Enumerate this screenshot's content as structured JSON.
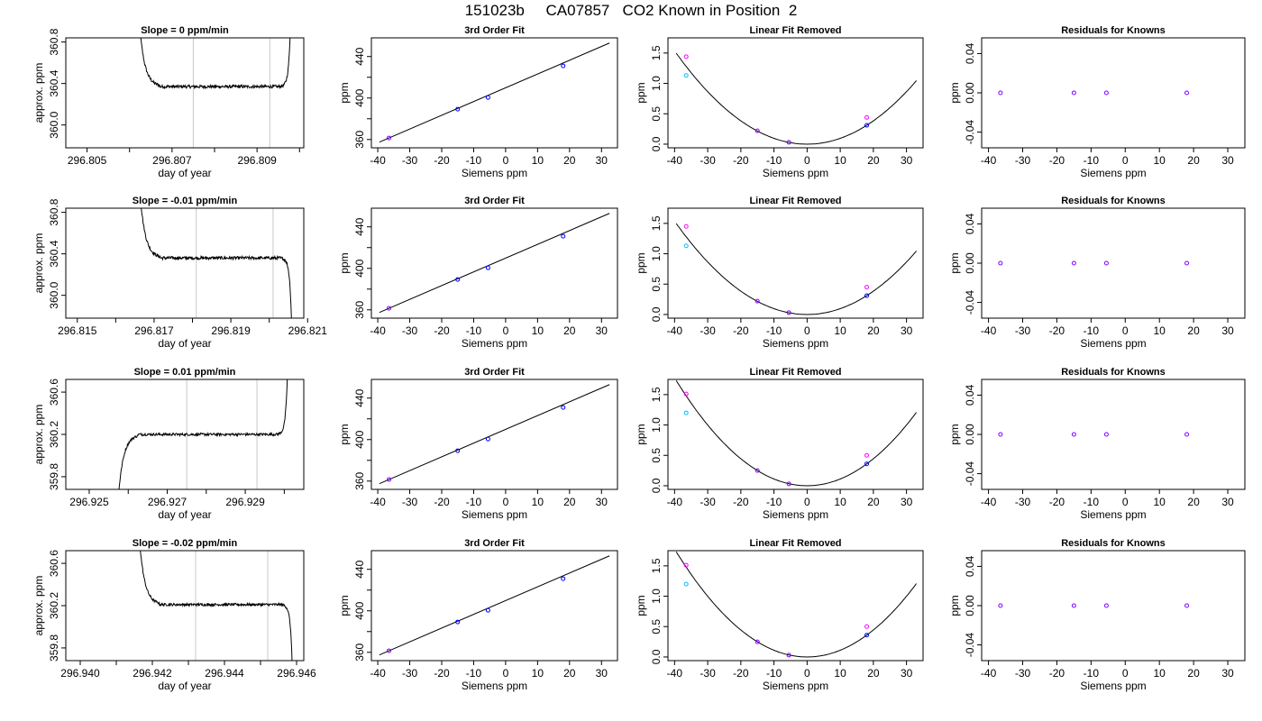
{
  "page_title": "151023b     CA07857   CO2 Known in Position  2",
  "colors": {
    "trace": "#000000",
    "gray_line": "#c8c8c8",
    "fit_line": "#000000",
    "series_blue": "#0000ff",
    "series_magenta": "#ff00ff",
    "series_cyan": "#00bfff",
    "series_purple": "#8000ff"
  },
  "chart_data": [
    {
      "type": "line",
      "row": 0,
      "col": 0,
      "title": "Slope =  0  ppm/min",
      "xlabel": "day of year",
      "ylabel": "approx. ppm",
      "xlim": [
        296.8045,
        296.8101
      ],
      "ylim": [
        359.78,
        360.84
      ],
      "xticks": [
        296.805,
        296.806,
        296.807,
        296.808,
        296.809,
        296.81
      ],
      "xticklabels": [
        "296.805",
        "",
        "296.807",
        "",
        "296.809",
        ""
      ],
      "yticks": [
        360.0,
        360.4,
        360.8
      ],
      "yticklabels": [
        "360.0",
        "360.4",
        "360.8"
      ],
      "vlines": [
        296.8075,
        296.8093
      ],
      "trace": {
        "start": 296.8062,
        "end": 296.8098,
        "level": 360.37,
        "noise": 0.015,
        "pre": "high",
        "post": "high"
      }
    },
    {
      "type": "line",
      "row": 0,
      "col": 1,
      "title": "3rd Order Fit",
      "xlabel": "Siemens ppm",
      "ylabel": "ppm",
      "xlim": [
        -42,
        35
      ],
      "ylim": [
        352,
        458
      ],
      "xticks": [
        -40,
        -30,
        -20,
        -10,
        0,
        10,
        20,
        30
      ],
      "xticklabels": [
        "-40",
        "-30",
        "-20",
        "-10",
        "0",
        "10",
        "20",
        "30"
      ],
      "yticks": [
        360,
        380,
        400,
        420,
        440
      ],
      "yticklabels": [
        "360",
        "",
        "400",
        "",
        "440"
      ],
      "fit": {
        "kind": "linear",
        "x": [
          -39.5,
          32.5
        ],
        "y": [
          357.5,
          453.0
        ]
      },
      "points": [
        {
          "x": -36.5,
          "y": 361.5,
          "color": "series_purple"
        },
        {
          "x": -15.0,
          "y": 389.3,
          "color": "series_blue"
        },
        {
          "x": -5.5,
          "y": 400.5,
          "color": "series_blue"
        },
        {
          "x": 18.0,
          "y": 431.0,
          "color": "series_blue"
        }
      ]
    },
    {
      "type": "line",
      "row": 0,
      "col": 2,
      "title": "Linear Fit Removed",
      "xlabel": "Siemens ppm",
      "ylabel": "ppm",
      "xlim": [
        -42,
        35
      ],
      "ylim": [
        -0.06,
        1.75
      ],
      "xticks": [
        -40,
        -30,
        -20,
        -10,
        0,
        10,
        20,
        30
      ],
      "xticklabels": [
        "-40",
        "-30",
        "-20",
        "-10",
        "0",
        "10",
        "20",
        "30"
      ],
      "yticks": [
        0.0,
        0.5,
        1.0,
        1.5
      ],
      "yticklabels": [
        "0.0",
        "0.5",
        "1.0",
        "1.5"
      ],
      "fit": {
        "kind": "quadratic",
        "a": 0.00096,
        "xmin": -39.5,
        "xmax": 33
      },
      "points": [
        {
          "x": -36.5,
          "y": 1.44,
          "color": "series_magenta"
        },
        {
          "x": -36.5,
          "y": 1.13,
          "color": "series_cyan"
        },
        {
          "x": -15.0,
          "y": 0.22,
          "color": "series_purple"
        },
        {
          "x": -5.5,
          "y": 0.03,
          "color": "series_purple"
        },
        {
          "x": 18.0,
          "y": 0.44,
          "color": "series_magenta"
        },
        {
          "x": 18.0,
          "y": 0.31,
          "color": "series_blue"
        }
      ]
    },
    {
      "type": "scatter",
      "row": 0,
      "col": 3,
      "title": "Residuals for Knowns",
      "xlabel": "Siemens ppm",
      "ylabel": "ppm",
      "xlim": [
        -42,
        35
      ],
      "ylim": [
        -0.056,
        0.056
      ],
      "xticks": [
        -40,
        -30,
        -20,
        -10,
        0,
        10,
        20,
        30
      ],
      "xticklabels": [
        "-40",
        "-30",
        "-20",
        "-10",
        "0",
        "10",
        "20",
        "30"
      ],
      "yticks": [
        -0.04,
        0.0,
        0.04
      ],
      "yticklabels": [
        "-0.04",
        "0.00",
        "0.04"
      ],
      "points": [
        {
          "x": -36.5,
          "y": 0.0,
          "color": "series_purple"
        },
        {
          "x": -15.0,
          "y": 0.0,
          "color": "series_purple"
        },
        {
          "x": -5.5,
          "y": 0.0,
          "color": "series_purple"
        },
        {
          "x": 18.0,
          "y": 0.0,
          "color": "series_purple"
        }
      ]
    },
    {
      "type": "line",
      "row": 1,
      "col": 0,
      "title": "Slope =  -0.01  ppm/min",
      "xlabel": "day of year",
      "ylabel": "approx. ppm",
      "xlim": [
        296.8147,
        296.8209
      ],
      "ylim": [
        359.78,
        360.84
      ],
      "xticks": [
        296.815,
        296.816,
        296.817,
        296.818,
        296.819,
        296.82,
        296.821
      ],
      "xticklabels": [
        "296.815",
        "",
        "296.817",
        "",
        "296.819",
        "",
        "296.821"
      ],
      "yticks": [
        360.0,
        360.4,
        360.8
      ],
      "yticklabels": [
        "360.0",
        "360.4",
        "360.8"
      ],
      "vlines": [
        296.8181,
        296.8201
      ],
      "trace": {
        "start": 296.8166,
        "end": 296.8206,
        "level": 360.36,
        "noise": 0.015,
        "pre": "high",
        "post": "low"
      }
    },
    {
      "type": "line",
      "row": 1,
      "col": 1,
      "title": "3rd Order Fit",
      "xlabel": "Siemens ppm",
      "ylabel": "ppm",
      "xlim": [
        -42,
        35
      ],
      "ylim": [
        352,
        458
      ],
      "xticks": [
        -40,
        -30,
        -20,
        -10,
        0,
        10,
        20,
        30
      ],
      "xticklabels": [
        "-40",
        "-30",
        "-20",
        "-10",
        "0",
        "10",
        "20",
        "30"
      ],
      "yticks": [
        360,
        380,
        400,
        420,
        440
      ],
      "yticklabels": [
        "360",
        "",
        "400",
        "",
        "440"
      ],
      "fit": {
        "kind": "linear",
        "x": [
          -39.5,
          32.5
        ],
        "y": [
          357.5,
          453.0
        ]
      },
      "points": [
        {
          "x": -36.5,
          "y": 361.5,
          "color": "series_purple"
        },
        {
          "x": -15.0,
          "y": 389.3,
          "color": "series_blue"
        },
        {
          "x": -5.5,
          "y": 400.5,
          "color": "series_blue"
        },
        {
          "x": 18.0,
          "y": 431.0,
          "color": "series_blue"
        }
      ]
    },
    {
      "type": "line",
      "row": 1,
      "col": 2,
      "title": "Linear Fit Removed",
      "xlabel": "Siemens ppm",
      "ylabel": "ppm",
      "xlim": [
        -42,
        35
      ],
      "ylim": [
        -0.06,
        1.75
      ],
      "xticks": [
        -40,
        -30,
        -20,
        -10,
        0,
        10,
        20,
        30
      ],
      "xticklabels": [
        "-40",
        "-30",
        "-20",
        "-10",
        "0",
        "10",
        "20",
        "30"
      ],
      "yticks": [
        0.0,
        0.5,
        1.0,
        1.5
      ],
      "yticklabels": [
        "0.0",
        "0.5",
        "1.0",
        "1.5"
      ],
      "fit": {
        "kind": "quadratic",
        "a": 0.00096,
        "xmin": -39.5,
        "xmax": 33
      },
      "points": [
        {
          "x": -36.5,
          "y": 1.45,
          "color": "series_magenta"
        },
        {
          "x": -36.5,
          "y": 1.13,
          "color": "series_cyan"
        },
        {
          "x": -15.0,
          "y": 0.22,
          "color": "series_purple"
        },
        {
          "x": -5.5,
          "y": 0.03,
          "color": "series_purple"
        },
        {
          "x": 18.0,
          "y": 0.45,
          "color": "series_magenta"
        },
        {
          "x": 18.0,
          "y": 0.31,
          "color": "series_blue"
        }
      ]
    },
    {
      "type": "scatter",
      "row": 1,
      "col": 3,
      "title": "Residuals for Knowns",
      "xlabel": "Siemens ppm",
      "ylabel": "ppm",
      "xlim": [
        -42,
        35
      ],
      "ylim": [
        -0.056,
        0.056
      ],
      "xticks": [
        -40,
        -30,
        -20,
        -10,
        0,
        10,
        20,
        30
      ],
      "xticklabels": [
        "-40",
        "-30",
        "-20",
        "-10",
        "0",
        "10",
        "20",
        "30"
      ],
      "yticks": [
        -0.04,
        0.0,
        0.04
      ],
      "yticklabels": [
        "-0.04",
        "0.00",
        "0.04"
      ],
      "points": [
        {
          "x": -36.5,
          "y": 0.0,
          "color": "series_purple"
        },
        {
          "x": -15.0,
          "y": 0.0,
          "color": "series_purple"
        },
        {
          "x": -5.5,
          "y": 0.0,
          "color": "series_purple"
        },
        {
          "x": 18.0,
          "y": 0.0,
          "color": "series_purple"
        }
      ]
    },
    {
      "type": "line",
      "row": 2,
      "col": 0,
      "title": "Slope =  0.01  ppm/min",
      "xlabel": "day of year",
      "ylabel": "approx. ppm",
      "xlim": [
        296.9244,
        296.9305
      ],
      "ylim": [
        359.68,
        360.72
      ],
      "xticks": [
        296.925,
        296.926,
        296.927,
        296.928,
        296.929,
        296.93
      ],
      "xticklabels": [
        "296.925",
        "",
        "296.927",
        "",
        "296.929",
        ""
      ],
      "yticks": [
        359.8,
        360.2,
        360.6
      ],
      "yticklabels": [
        "359.8",
        "360.2",
        "360.6"
      ],
      "vlines": [
        296.9275,
        296.9293
      ],
      "trace": {
        "start": 296.9257,
        "end": 296.9301,
        "level": 360.2,
        "noise": 0.012,
        "pre": "low",
        "post": "high"
      }
    },
    {
      "type": "line",
      "row": 2,
      "col": 1,
      "title": "3rd Order Fit",
      "xlabel": "Siemens ppm",
      "ylabel": "ppm",
      "xlim": [
        -42,
        35
      ],
      "ylim": [
        352,
        458
      ],
      "xticks": [
        -40,
        -30,
        -20,
        -10,
        0,
        10,
        20,
        30
      ],
      "xticklabels": [
        "-40",
        "-30",
        "-20",
        "-10",
        "0",
        "10",
        "20",
        "30"
      ],
      "yticks": [
        360,
        380,
        400,
        420,
        440
      ],
      "yticklabels": [
        "360",
        "",
        "400",
        "",
        "440"
      ],
      "fit": {
        "kind": "linear",
        "x": [
          -39.5,
          32.5
        ],
        "y": [
          357.5,
          453.0
        ]
      },
      "points": [
        {
          "x": -36.5,
          "y": 361.5,
          "color": "series_purple"
        },
        {
          "x": -15.0,
          "y": 389.3,
          "color": "series_blue"
        },
        {
          "x": -5.5,
          "y": 400.5,
          "color": "series_blue"
        },
        {
          "x": 18.0,
          "y": 431.0,
          "color": "series_blue"
        }
      ]
    },
    {
      "type": "line",
      "row": 2,
      "col": 2,
      "title": "Linear Fit Removed",
      "xlabel": "Siemens ppm",
      "ylabel": "ppm",
      "xlim": [
        -42,
        35
      ],
      "ylim": [
        -0.06,
        1.75
      ],
      "xticks": [
        -40,
        -30,
        -20,
        -10,
        0,
        10,
        20,
        30
      ],
      "xticklabels": [
        "-40",
        "-30",
        "-20",
        "-10",
        "0",
        "10",
        "20",
        "30"
      ],
      "yticks": [
        0.0,
        0.5,
        1.0,
        1.5
      ],
      "yticklabels": [
        "0.0",
        "0.5",
        "1.0",
        "1.5"
      ],
      "fit": {
        "kind": "quadratic",
        "a": 0.00111,
        "xmin": -39.5,
        "xmax": 33
      },
      "points": [
        {
          "x": -36.5,
          "y": 1.51,
          "color": "series_magenta"
        },
        {
          "x": -36.5,
          "y": 1.2,
          "color": "series_cyan"
        },
        {
          "x": -15.0,
          "y": 0.25,
          "color": "series_purple"
        },
        {
          "x": -5.5,
          "y": 0.03,
          "color": "series_purple"
        },
        {
          "x": 18.0,
          "y": 0.5,
          "color": "series_magenta"
        },
        {
          "x": 18.0,
          "y": 0.36,
          "color": "series_blue"
        }
      ]
    },
    {
      "type": "scatter",
      "row": 2,
      "col": 3,
      "title": "Residuals for Knowns",
      "xlabel": "Siemens ppm",
      "ylabel": "ppm",
      "xlim": [
        -42,
        35
      ],
      "ylim": [
        -0.056,
        0.056
      ],
      "xticks": [
        -40,
        -30,
        -20,
        -10,
        0,
        10,
        20,
        30
      ],
      "xticklabels": [
        "-40",
        "-30",
        "-20",
        "-10",
        "0",
        "10",
        "20",
        "30"
      ],
      "yticks": [
        -0.04,
        0.0,
        0.04
      ],
      "yticklabels": [
        "-0.04",
        "0.00",
        "0.04"
      ],
      "points": [
        {
          "x": -36.5,
          "y": 0.0,
          "color": "series_purple"
        },
        {
          "x": -15.0,
          "y": 0.0,
          "color": "series_purple"
        },
        {
          "x": -5.5,
          "y": 0.0,
          "color": "series_purple"
        },
        {
          "x": 18.0,
          "y": 0.0,
          "color": "series_purple"
        }
      ]
    },
    {
      "type": "line",
      "row": 3,
      "col": 0,
      "title": "Slope =  -0.02  ppm/min",
      "xlabel": "day of year",
      "ylabel": "approx. ppm",
      "xlim": [
        296.9396,
        296.9462
      ],
      "ylim": [
        359.68,
        360.72
      ],
      "xticks": [
        296.94,
        296.941,
        296.942,
        296.943,
        296.944,
        296.945,
        296.946
      ],
      "xticklabels": [
        "296.940",
        "",
        "296.942",
        "",
        "296.944",
        "",
        "296.946"
      ],
      "yticks": [
        359.8,
        360.2,
        360.6
      ],
      "yticklabels": [
        "359.8",
        "360.2",
        "360.6"
      ],
      "vlines": [
        296.9432,
        296.9452
      ],
      "trace": {
        "start": 296.9416,
        "end": 296.9459,
        "level": 360.21,
        "noise": 0.012,
        "pre": "high",
        "post": "low"
      }
    },
    {
      "type": "line",
      "row": 3,
      "col": 1,
      "title": "3rd Order Fit",
      "xlabel": "Siemens ppm",
      "ylabel": "ppm",
      "xlim": [
        -42,
        35
      ],
      "ylim": [
        352,
        458
      ],
      "xticks": [
        -40,
        -30,
        -20,
        -10,
        0,
        10,
        20,
        30
      ],
      "xticklabels": [
        "-40",
        "-30",
        "-20",
        "-10",
        "0",
        "10",
        "20",
        "30"
      ],
      "yticks": [
        360,
        380,
        400,
        420,
        440
      ],
      "yticklabels": [
        "360",
        "",
        "400",
        "",
        "440"
      ],
      "fit": {
        "kind": "linear",
        "x": [
          -39.5,
          32.5
        ],
        "y": [
          357.5,
          453.0
        ]
      },
      "points": [
        {
          "x": -36.5,
          "y": 361.5,
          "color": "series_purple"
        },
        {
          "x": -15.0,
          "y": 389.3,
          "color": "series_blue"
        },
        {
          "x": -5.5,
          "y": 400.5,
          "color": "series_blue"
        },
        {
          "x": 18.0,
          "y": 431.0,
          "color": "series_blue"
        }
      ]
    },
    {
      "type": "line",
      "row": 3,
      "col": 2,
      "title": "Linear Fit Removed",
      "xlabel": "Siemens ppm",
      "ylabel": "ppm",
      "xlim": [
        -42,
        35
      ],
      "ylim": [
        -0.06,
        1.75
      ],
      "xticks": [
        -40,
        -30,
        -20,
        -10,
        0,
        10,
        20,
        30
      ],
      "xticklabels": [
        "-40",
        "-30",
        "-20",
        "-10",
        "0",
        "10",
        "20",
        "30"
      ],
      "yticks": [
        0.0,
        0.5,
        1.0,
        1.5
      ],
      "yticklabels": [
        "0.0",
        "0.5",
        "1.0",
        "1.5"
      ],
      "fit": {
        "kind": "quadratic",
        "a": 0.00111,
        "xmin": -39.5,
        "xmax": 33
      },
      "points": [
        {
          "x": -36.5,
          "y": 1.51,
          "color": "series_magenta"
        },
        {
          "x": -36.5,
          "y": 1.2,
          "color": "series_cyan"
        },
        {
          "x": -15.0,
          "y": 0.25,
          "color": "series_purple"
        },
        {
          "x": -5.5,
          "y": 0.03,
          "color": "series_purple"
        },
        {
          "x": 18.0,
          "y": 0.5,
          "color": "series_magenta"
        },
        {
          "x": 18.0,
          "y": 0.36,
          "color": "series_blue"
        }
      ]
    },
    {
      "type": "scatter",
      "row": 3,
      "col": 3,
      "title": "Residuals for Knowns",
      "xlabel": "Siemens ppm",
      "ylabel": "ppm",
      "xlim": [
        -42,
        35
      ],
      "ylim": [
        -0.056,
        0.056
      ],
      "xticks": [
        -40,
        -30,
        -20,
        -10,
        0,
        10,
        20,
        30
      ],
      "xticklabels": [
        "-40",
        "-30",
        "-20",
        "-10",
        "0",
        "10",
        "20",
        "30"
      ],
      "yticks": [
        -0.04,
        0.0,
        0.04
      ],
      "yticklabels": [
        "-0.04",
        "0.00",
        "0.04"
      ],
      "points": [
        {
          "x": -36.5,
          "y": 0.0,
          "color": "series_purple"
        },
        {
          "x": -15.0,
          "y": 0.0,
          "color": "series_purple"
        },
        {
          "x": -5.5,
          "y": 0.0,
          "color": "series_purple"
        },
        {
          "x": 18.0,
          "y": 0.0,
          "color": "series_purple"
        }
      ]
    }
  ]
}
